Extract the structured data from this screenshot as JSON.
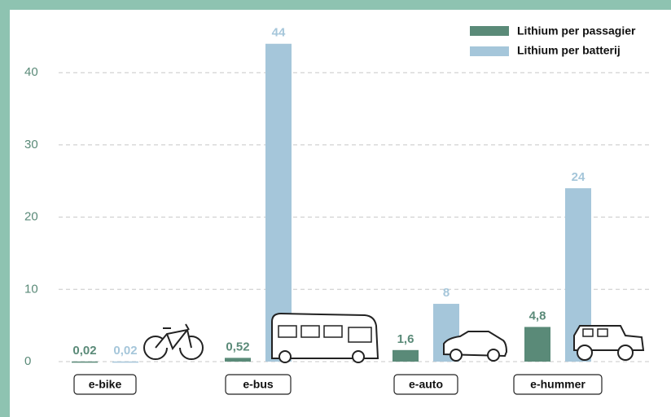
{
  "chart_data": {
    "type": "bar",
    "categories": [
      "e-bike",
      "e-bus",
      "e-auto",
      "e-hummer"
    ],
    "series": [
      {
        "name": "Lithium per passagier",
        "color": "#5a8a78",
        "values": [
          0.02,
          0.52,
          1.6,
          4.8
        ],
        "value_labels": [
          "0,02",
          "0,52",
          "1,6",
          "4,8"
        ]
      },
      {
        "name": "Lithium per batterij",
        "color": "#a5c6da",
        "values": [
          0.02,
          44,
          8,
          24
        ],
        "value_labels": [
          "0,02",
          "44",
          "8",
          "24"
        ]
      }
    ],
    "ylim": [
      0,
      46
    ],
    "yticks": [
      0,
      10,
      20,
      30,
      40
    ],
    "grid": true,
    "legend": "top-right"
  }
}
